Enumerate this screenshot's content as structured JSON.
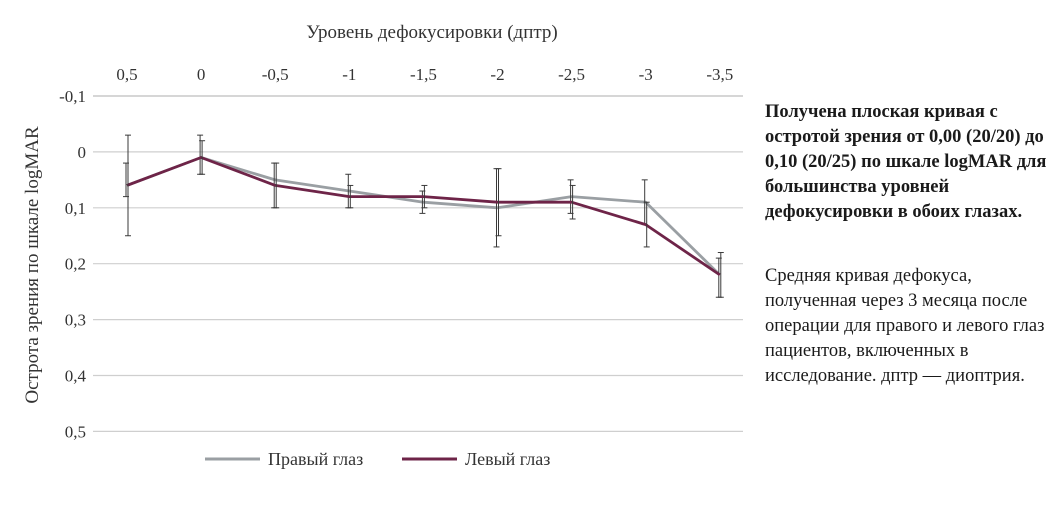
{
  "chart_data": {
    "type": "line",
    "xlabel": "Уровень дефокусировки (дптр)",
    "ylabel": "Острота зрения по шкале logMAR",
    "x_tick_labels": [
      "0,5",
      "0",
      "-0,5",
      "-1",
      "-1,5",
      "-2",
      "-2,5",
      "-3",
      "-3,5"
    ],
    "y_tick_labels": [
      "-0,1",
      "0",
      "0,1",
      "0,2",
      "0,3",
      "0,4",
      "0,5"
    ],
    "x": [
      0.5,
      0,
      -0.5,
      -1,
      -1.5,
      -2,
      -2.5,
      -3,
      -3.5
    ],
    "ylim": [
      -0.1,
      0.5
    ],
    "y_inverted": true,
    "x_axis_position": "top",
    "grid": "horizontal",
    "legend_position": "bottom",
    "series": [
      {
        "name": "Правый глаз",
        "color": "#9a9fa3",
        "values": [
          0.06,
          0.01,
          0.05,
          0.07,
          0.09,
          0.1,
          0.08,
          0.09,
          0.22
        ],
        "err_low": [
          0.04,
          0.04,
          0.03,
          0.03,
          0.02,
          0.07,
          0.03,
          0.04,
          0.03
        ],
        "err_high": [
          0.02,
          0.03,
          0.05,
          0.03,
          0.02,
          0.07,
          0.03,
          0.04,
          0.04
        ]
      },
      {
        "name": "Левый глаз",
        "color": "#6e2448",
        "values": [
          0.06,
          0.01,
          0.06,
          0.08,
          0.08,
          0.09,
          0.09,
          0.13,
          0.22
        ],
        "err_low": [
          0.09,
          0.03,
          0.04,
          0.02,
          0.02,
          0.06,
          0.03,
          0.04,
          0.04
        ],
        "err_high": [
          0.09,
          0.03,
          0.04,
          0.02,
          0.02,
          0.06,
          0.03,
          0.04,
          0.04
        ]
      }
    ]
  },
  "side": {
    "title": "Получена плоская кривая с остротой зрения от 0,00 (20/20) до 0,10 (20/25) по шкале logMAR для большинства уровней дефокусировки в обоих глазах.",
    "caption": "Средняя кривая дефокуса, полученная через 3 месяца после операции для правого и левого глаз пациентов, включенных в исследование. дптр — диоптрия."
  }
}
